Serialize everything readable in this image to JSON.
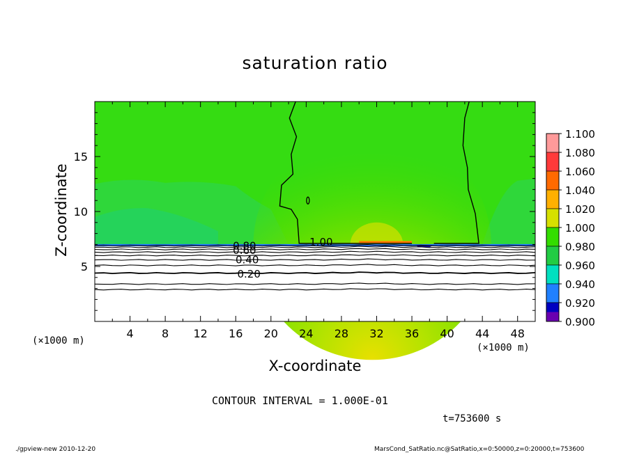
{
  "chart_data": {
    "type": "heatmap",
    "title": "saturation ratio",
    "xlabel": "X-coordinate",
    "ylabel": "Z-coordinate",
    "x_unit_left": "(×1000 m)",
    "x_unit_right": "(×1000 m)",
    "xlim": [
      0,
      50
    ],
    "ylim": [
      0,
      20
    ],
    "x_ticks": [
      "4",
      "8",
      "12",
      "16",
      "20",
      "24",
      "28",
      "32",
      "36",
      "40",
      "44",
      "48"
    ],
    "x_tick_values": [
      4,
      8,
      12,
      16,
      20,
      24,
      28,
      32,
      36,
      40,
      44,
      48
    ],
    "y_ticks": [
      "5",
      "10",
      "15"
    ],
    "y_tick_values": [
      5,
      10,
      15
    ],
    "colorbar": {
      "levels": [
        "1.100",
        "1.080",
        "1.060",
        "1.040",
        "1.020",
        "1.000",
        "0.980",
        "0.960",
        "0.940",
        "0.920",
        "0.900"
      ],
      "colors": [
        "#ff9a9a",
        "#ff3a3a",
        "#ff6a00",
        "#ffb000",
        "#d6e000",
        "#33dd00",
        "#22cc44",
        "#00e0c0",
        "#2080ff",
        "#0000c0",
        "#6a00b0"
      ]
    },
    "contour_labels": [
      "0.80",
      "0.60",
      "0.40",
      "0.20",
      "1.00"
    ],
    "contour_interval": "CONTOUR INTERVAL = 1.000E-01",
    "time_label": "t=753600 s",
    "legend_placement": "right"
  },
  "footer": {
    "left": "./gpview-new   2010-12-20",
    "right": "MarsCond_SatRatio.nc@SatRatio,x=0:50000,z=0:20000,t=753600"
  }
}
